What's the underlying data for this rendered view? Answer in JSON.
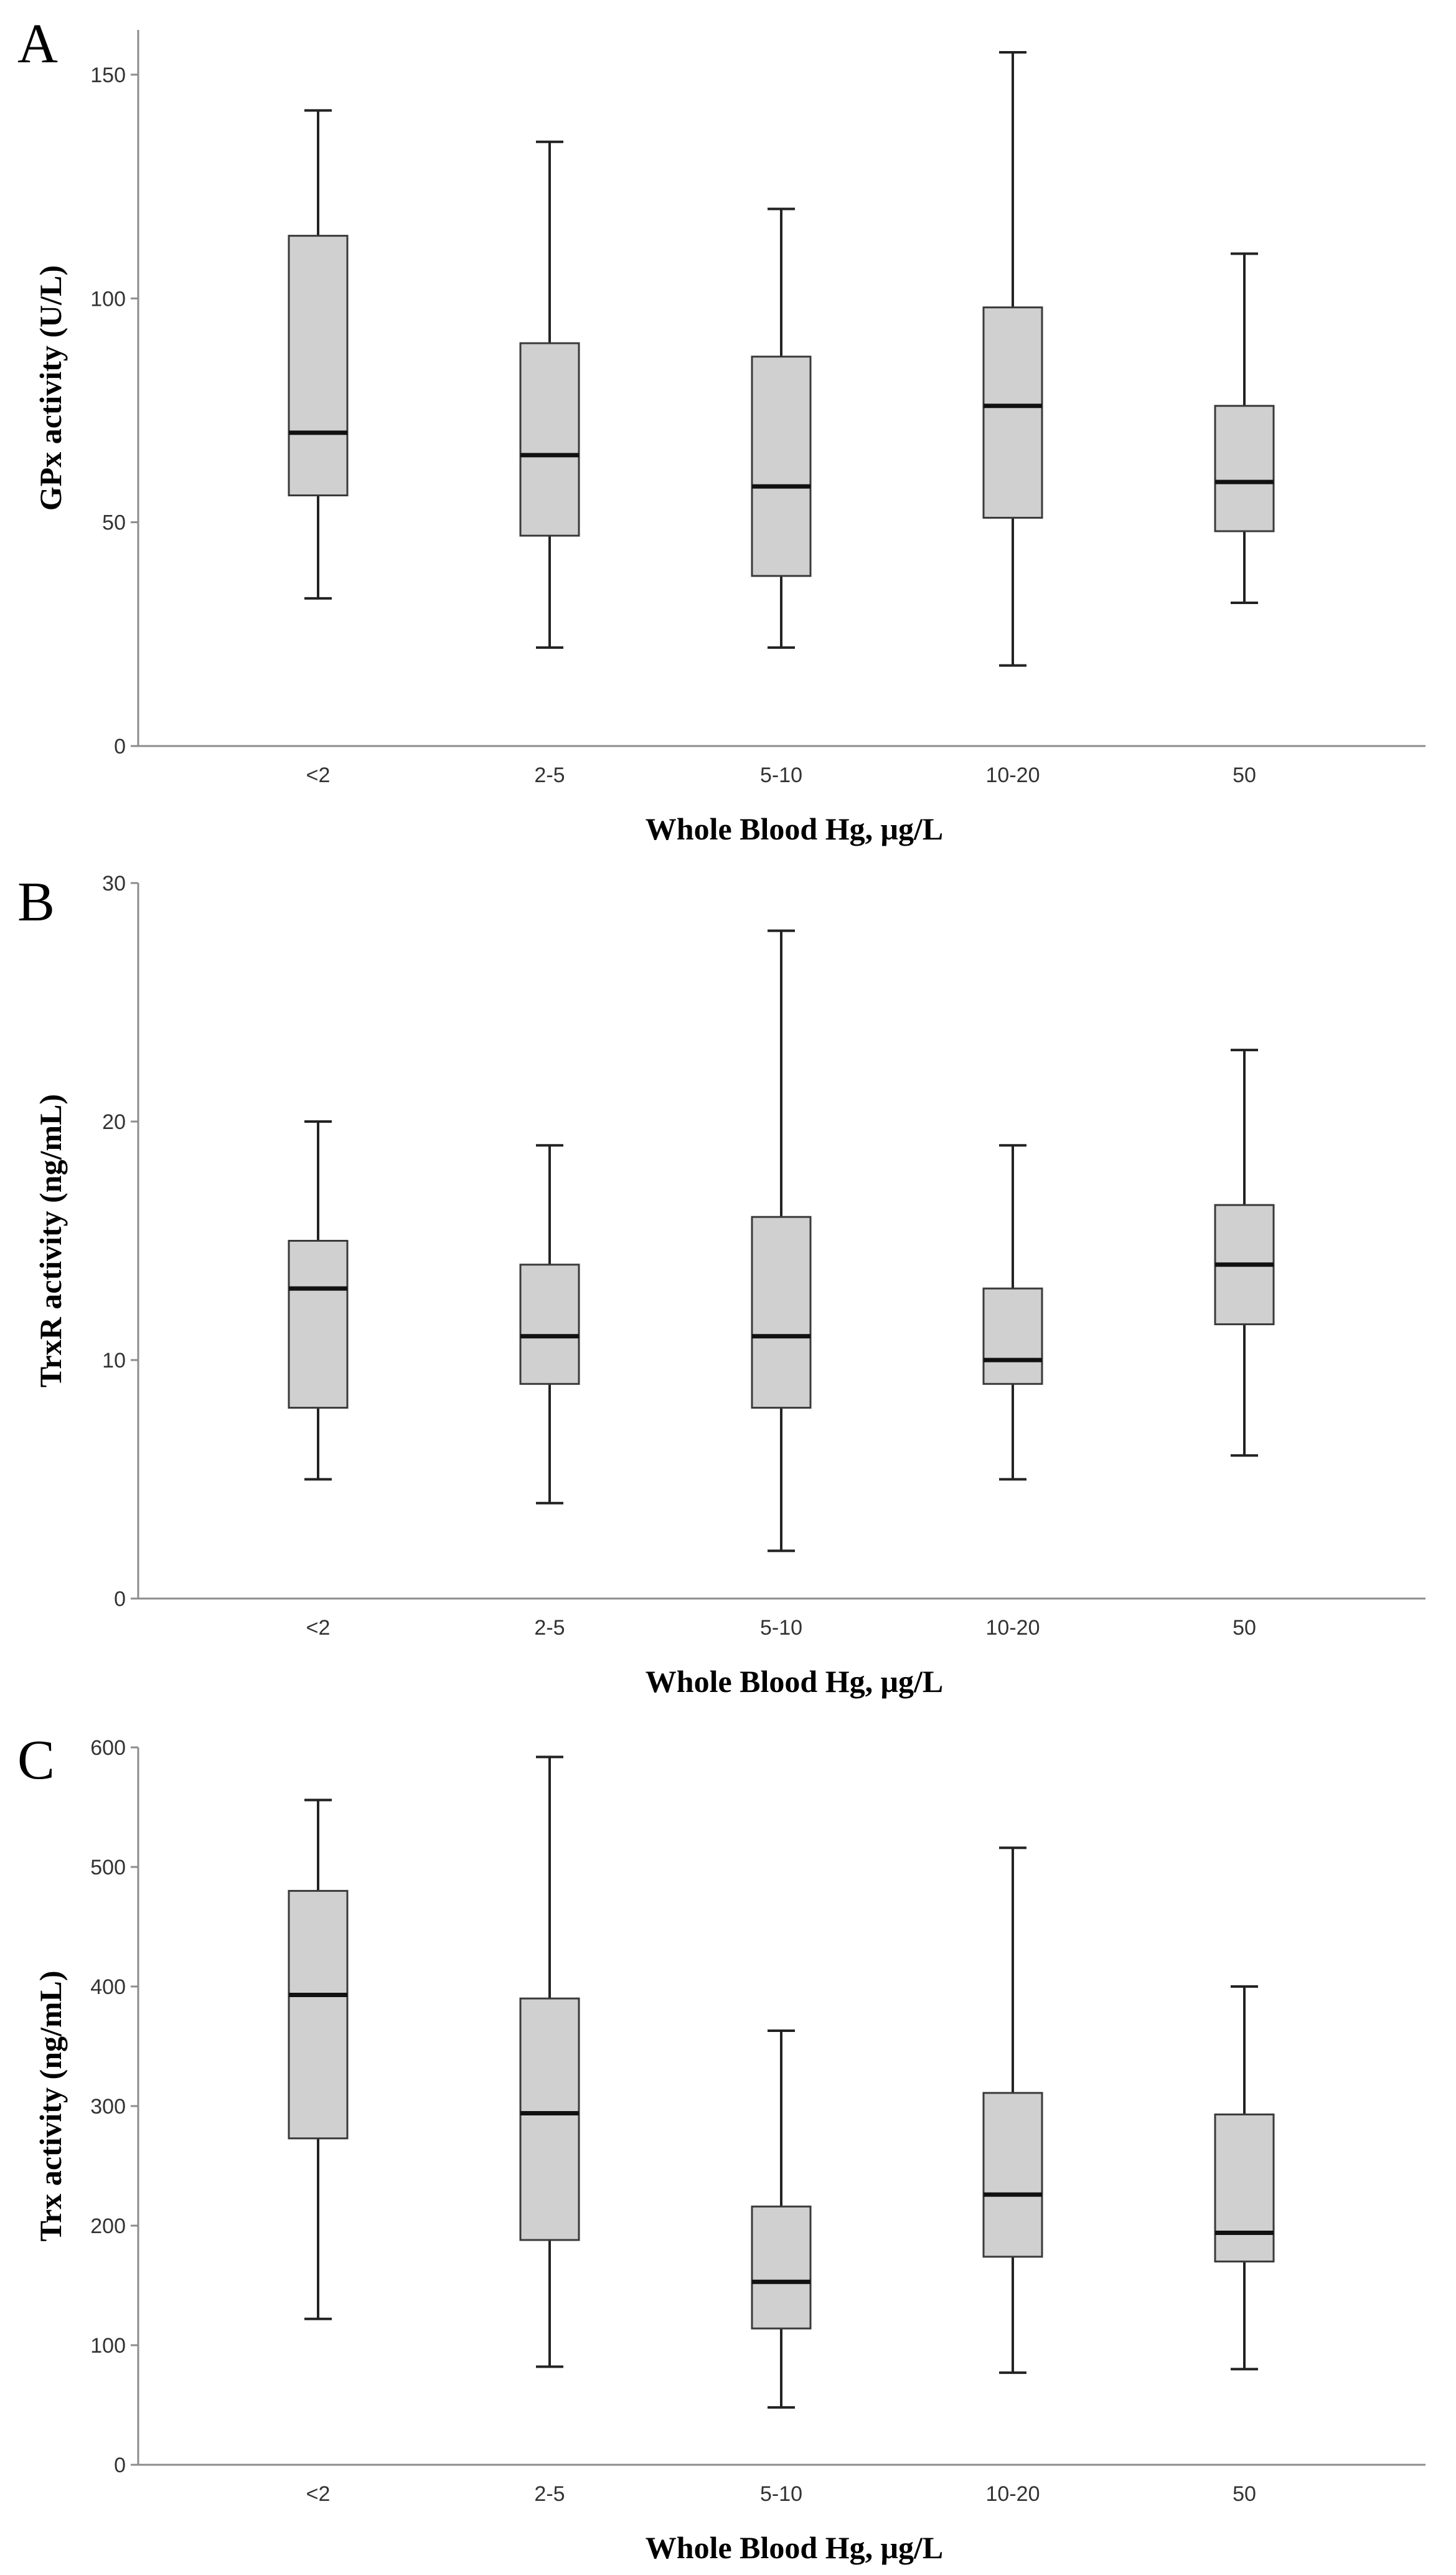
{
  "chart_data": [
    {
      "type": "boxplot",
      "panel_label": "A",
      "xlabel": "Whole Blood Hg, μg/L",
      "ylabel": "GPx activity (U/L)",
      "categories": [
        "<2",
        "2-5",
        "5-10",
        "10-20",
        "50"
      ],
      "ylim": [
        0,
        160
      ],
      "yticks": [
        0,
        50,
        100,
        150
      ],
      "boxes": [
        {
          "min": 33,
          "q1": 56,
          "median": 70,
          "q3": 114,
          "max": 142
        },
        {
          "min": 22,
          "q1": 47,
          "median": 65,
          "q3": 90,
          "max": 135
        },
        {
          "min": 22,
          "q1": 38,
          "median": 58,
          "q3": 87,
          "max": 120
        },
        {
          "min": 18,
          "q1": 51,
          "median": 76,
          "q3": 98,
          "max": 155
        },
        {
          "min": 32,
          "q1": 48,
          "median": 59,
          "q3": 76,
          "max": 110
        }
      ]
    },
    {
      "type": "boxplot",
      "panel_label": "B",
      "xlabel": "Whole Blood Hg, μg/L",
      "ylabel": "TrxR activity (ng/mL)",
      "categories": [
        "<2",
        "2-5",
        "5-10",
        "10-20",
        "50"
      ],
      "ylim": [
        0,
        30
      ],
      "yticks": [
        0,
        10,
        20,
        30
      ],
      "boxes": [
        {
          "min": 5,
          "q1": 8,
          "median": 13,
          "q3": 15,
          "max": 20
        },
        {
          "min": 4,
          "q1": 9,
          "median": 11,
          "q3": 14,
          "max": 19
        },
        {
          "min": 2,
          "q1": 8,
          "median": 11,
          "q3": 16,
          "max": 28
        },
        {
          "min": 5,
          "q1": 9,
          "median": 10,
          "q3": 13,
          "max": 19
        },
        {
          "min": 6,
          "q1": 11.5,
          "median": 14,
          "q3": 16.5,
          "max": 23
        }
      ]
    },
    {
      "type": "boxplot",
      "panel_label": "C",
      "xlabel": "Whole Blood Hg, μg/L",
      "ylabel": "Trx activity (ng/mL)",
      "categories": [
        "<2",
        "2-5",
        "5-10",
        "10-20",
        "50"
      ],
      "ylim": [
        0,
        600
      ],
      "yticks": [
        0,
        100,
        200,
        300,
        400,
        500,
        600
      ],
      "boxes": [
        {
          "min": 122,
          "q1": 273,
          "median": 393,
          "q3": 480,
          "max": 556
        },
        {
          "min": 82,
          "q1": 188,
          "median": 294,
          "q3": 390,
          "max": 592
        },
        {
          "min": 48,
          "q1": 114,
          "median": 153,
          "q3": 216,
          "max": 363
        },
        {
          "min": 77,
          "q1": 174,
          "median": 226,
          "q3": 311,
          "max": 516
        },
        {
          "min": 80,
          "q1": 170,
          "median": 194,
          "q3": 293,
          "max": 400
        }
      ]
    }
  ]
}
